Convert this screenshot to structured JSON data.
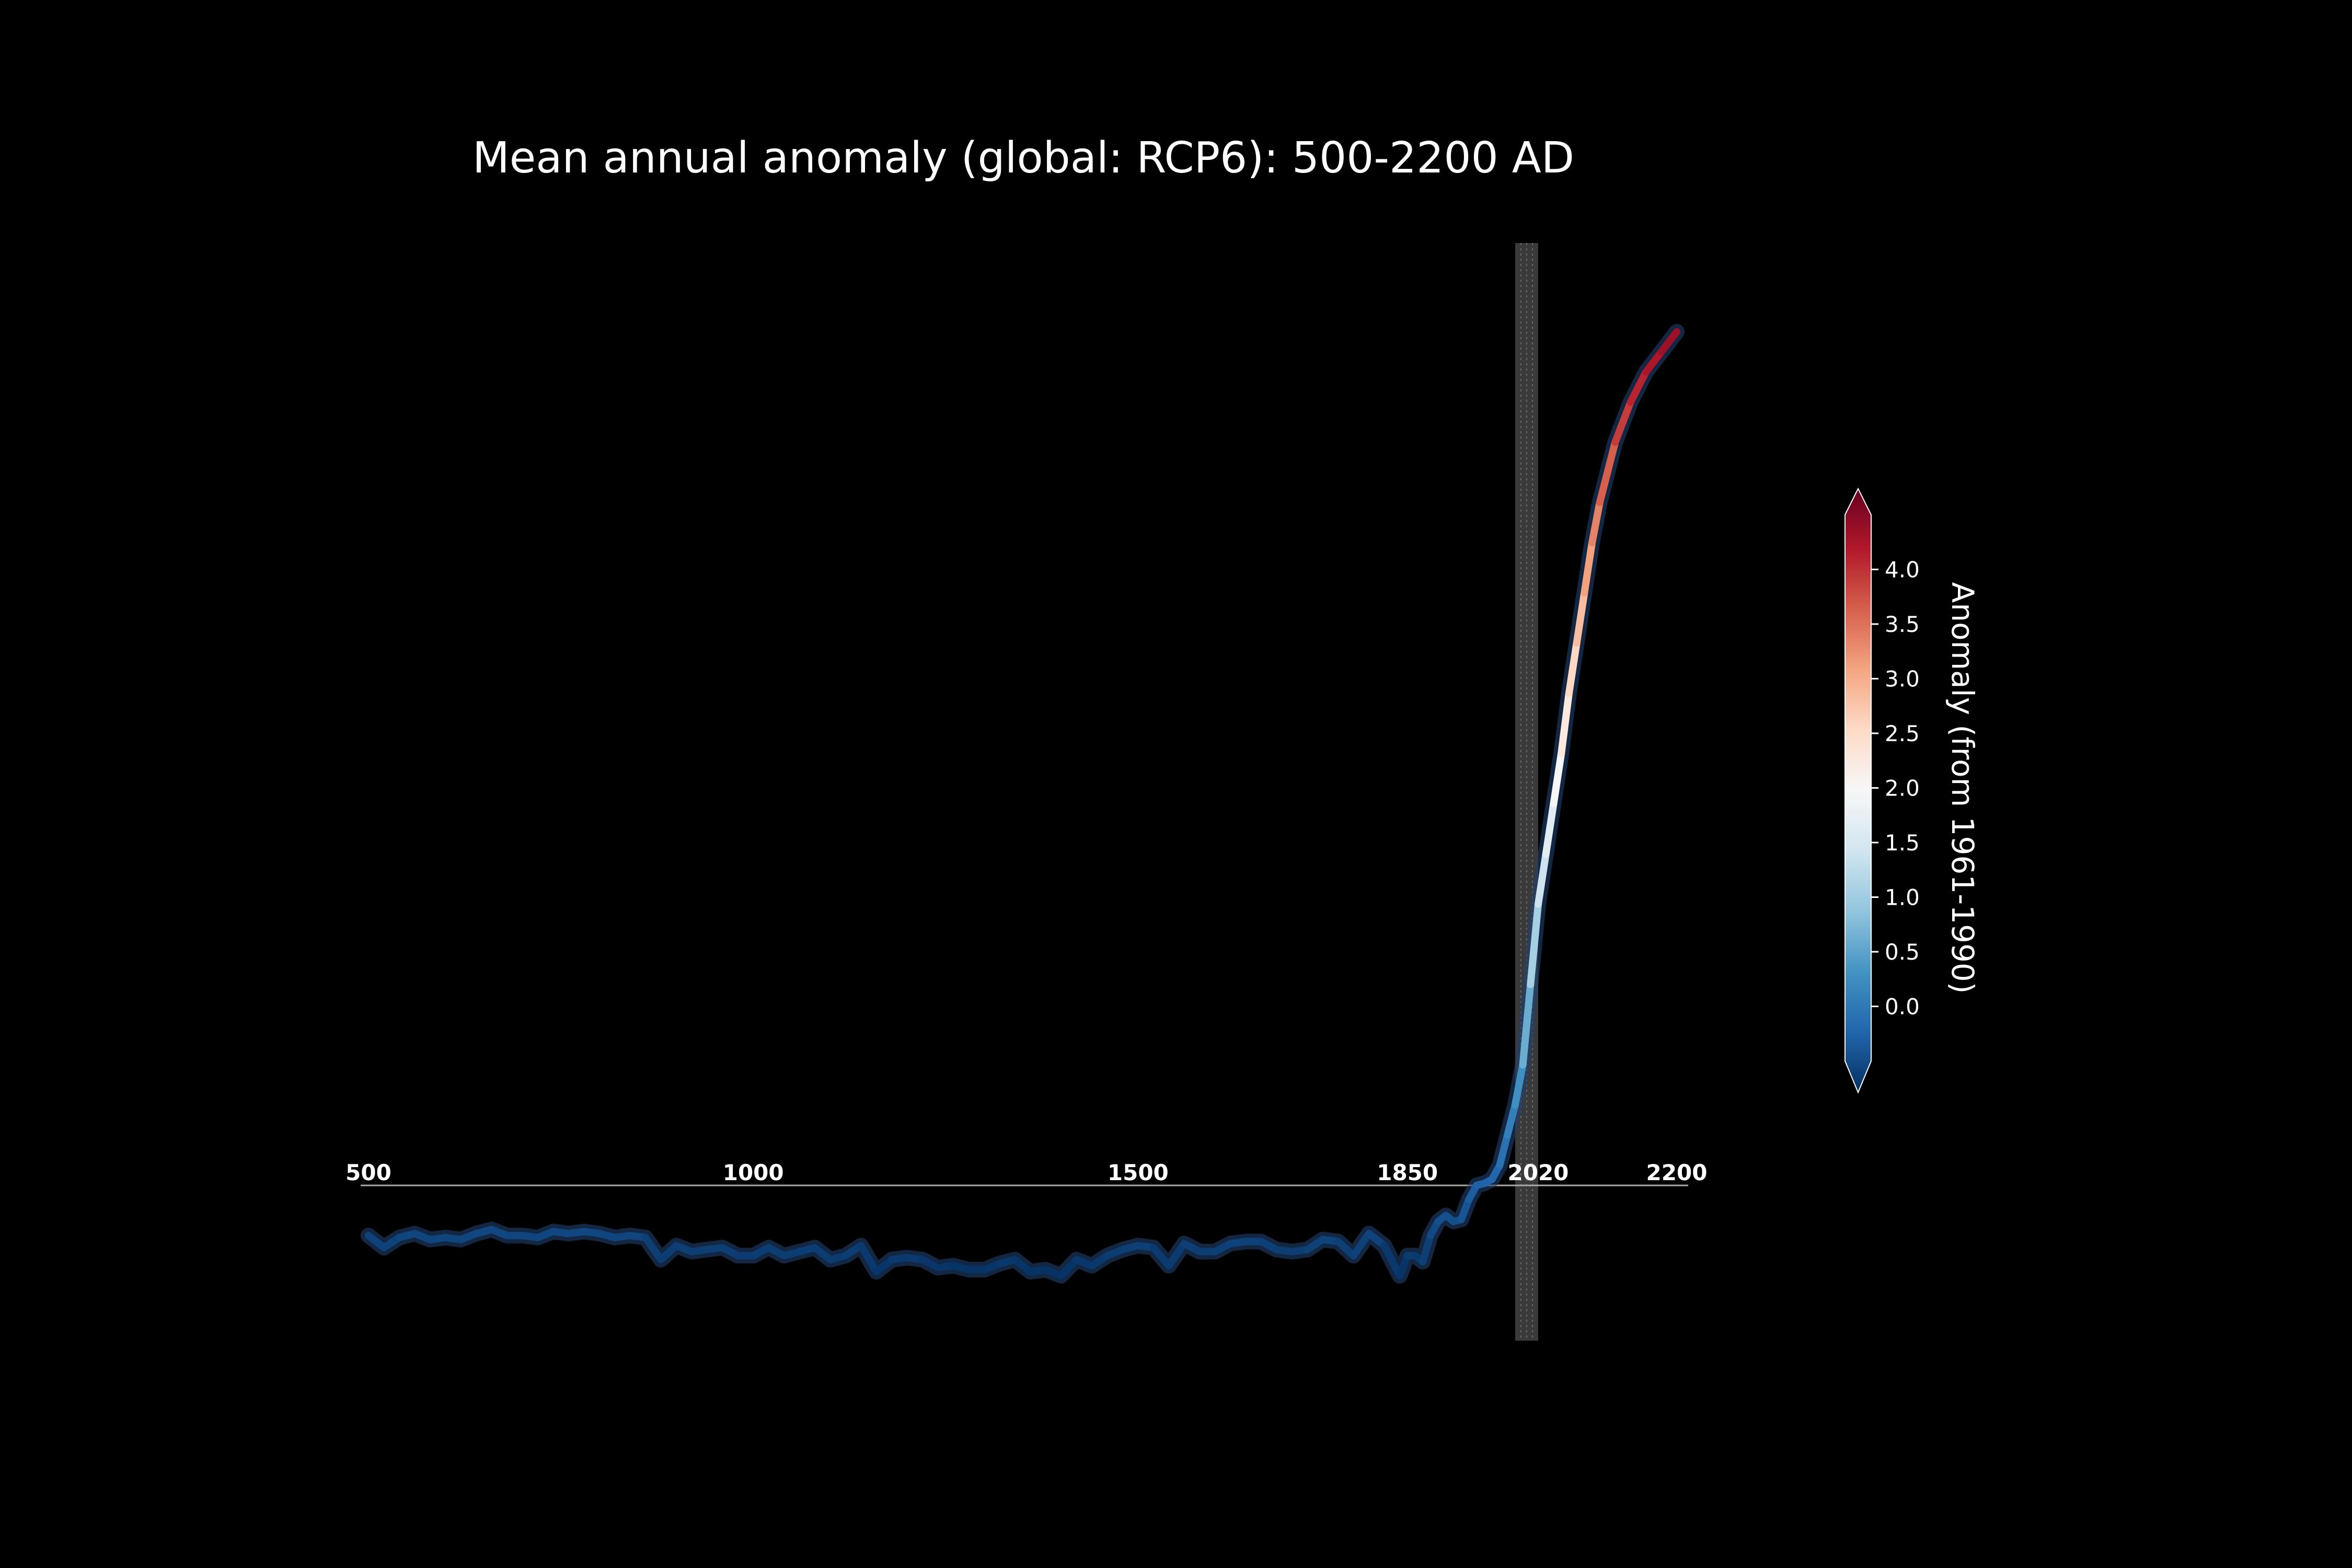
{
  "chart_data": {
    "type": "line",
    "title": "Mean annual anomaly (global: RCP6): 500-2200 AD",
    "xlabel": "",
    "ylabel": "",
    "xlim": [
      500,
      2200
    ],
    "x_ticks": [
      "500",
      "1000",
      "1500",
      "1850",
      "2020",
      "2200"
    ],
    "x_tick_values": [
      500,
      1000,
      1500,
      1850,
      2020,
      2200
    ],
    "ylim": [
      -0.55,
      4.4
    ],
    "highlight_band": {
      "from": 1990,
      "to": 2020
    },
    "grid": false,
    "colormap": "RdBu_r",
    "colorbar": {
      "label": "Anomaly (from 1961-1990)",
      "ticks": [
        "0.0",
        "0.5",
        "1.0",
        "1.5",
        "2.0",
        "2.5",
        "3.0",
        "3.5",
        "4.0"
      ],
      "tick_values": [
        0.0,
        0.5,
        1.0,
        1.5,
        2.0,
        2.5,
        3.0,
        3.5,
        4.0
      ],
      "range": [
        -0.5,
        4.5
      ],
      "extend": "both"
    },
    "series": [
      {
        "x": [
          500,
          520,
          540,
          560,
          580,
          600,
          620,
          640,
          660,
          680,
          700,
          720,
          740,
          760,
          780,
          800,
          820,
          840,
          860,
          880,
          900,
          920,
          940,
          960,
          980,
          1000,
          1020,
          1040,
          1060,
          1080,
          1100,
          1120,
          1140,
          1160,
          1180,
          1200,
          1220,
          1240,
          1260,
          1280,
          1300,
          1320,
          1340,
          1360,
          1380,
          1400,
          1420,
          1440,
          1460,
          1480,
          1500,
          1520,
          1540,
          1560,
          1580,
          1600,
          1620,
          1640,
          1660,
          1680,
          1700,
          1720,
          1740,
          1760,
          1780,
          1800,
          1820,
          1840,
          1850,
          1860,
          1870,
          1880,
          1890,
          1900,
          1910,
          1920,
          1930,
          1940,
          1950,
          1960,
          1970,
          1980,
          1990,
          2000,
          2010,
          2020,
          2030,
          2040,
          2050,
          2060,
          2070,
          2080,
          2090,
          2100,
          2120,
          2140,
          2160,
          2180,
          2200
        ],
        "y": [
          -0.3,
          -0.36,
          -0.31,
          -0.29,
          -0.32,
          -0.31,
          -0.32,
          -0.29,
          -0.27,
          -0.3,
          -0.3,
          -0.31,
          -0.28,
          -0.29,
          -0.28,
          -0.29,
          -0.31,
          -0.3,
          -0.31,
          -0.42,
          -0.35,
          -0.38,
          -0.37,
          -0.36,
          -0.4,
          -0.4,
          -0.36,
          -0.4,
          -0.38,
          -0.36,
          -0.42,
          -0.4,
          -0.35,
          -0.48,
          -0.42,
          -0.41,
          -0.42,
          -0.46,
          -0.45,
          -0.47,
          -0.47,
          -0.44,
          -0.42,
          -0.48,
          -0.47,
          -0.5,
          -0.42,
          -0.45,
          -0.4,
          -0.37,
          -0.35,
          -0.36,
          -0.45,
          -0.34,
          -0.38,
          -0.38,
          -0.34,
          -0.33,
          -0.33,
          -0.37,
          -0.38,
          -0.37,
          -0.32,
          -0.33,
          -0.4,
          -0.29,
          -0.35,
          -0.5,
          -0.4,
          -0.4,
          -0.43,
          -0.3,
          -0.23,
          -0.2,
          -0.23,
          -0.22,
          -0.12,
          -0.05,
          -0.04,
          -0.02,
          0.05,
          0.2,
          0.35,
          0.55,
          0.95,
          1.35,
          1.6,
          1.85,
          2.1,
          2.4,
          2.65,
          2.9,
          3.15,
          3.35,
          3.65,
          3.85,
          4.0,
          4.1,
          4.2
        ]
      }
    ]
  }
}
